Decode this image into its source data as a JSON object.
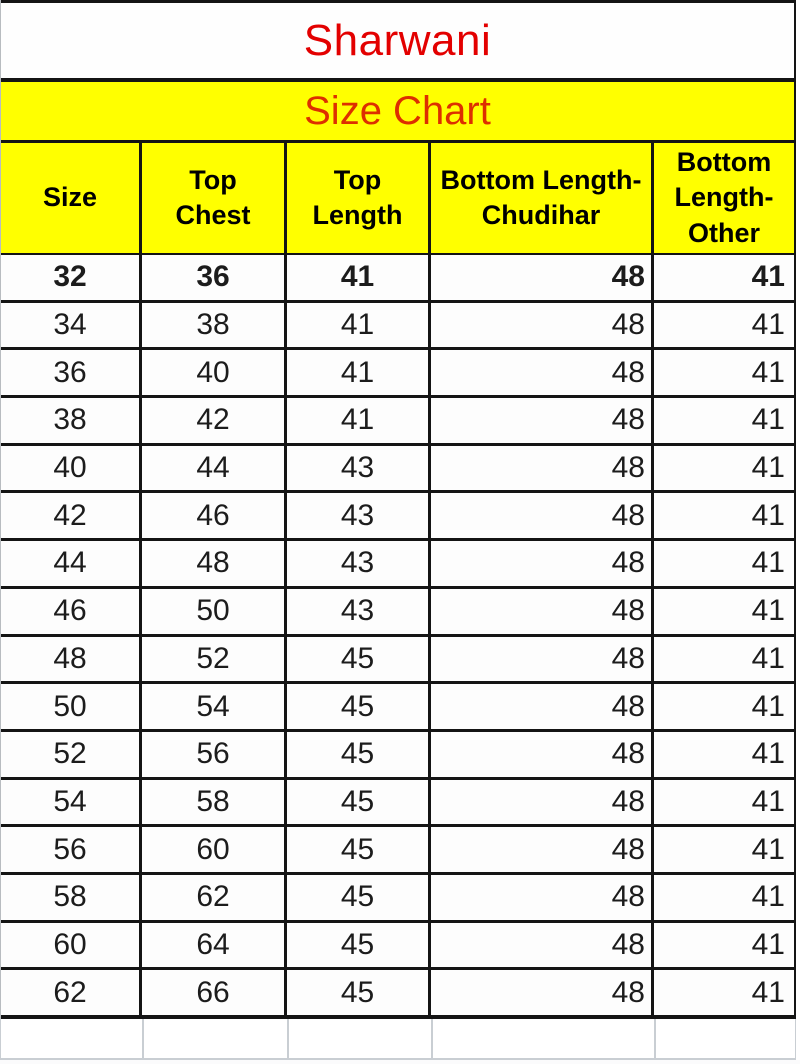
{
  "page": {
    "title": "Sharwani",
    "subtitle": "Size Chart"
  },
  "colors": {
    "title_red": "#e30000",
    "subtitle_red": "#dd2f00",
    "band_yellow": "#ffff00",
    "line_black": "#141414",
    "text_black": "#1c1c1c",
    "ghost_line": "#c9ced3"
  },
  "chart_data": {
    "type": "table",
    "title": "Sharwani",
    "subtitle": "Size Chart",
    "columns": [
      "Size",
      "Top Chest",
      "Top Length",
      "Bottom Length-Chudihar",
      "Bottom Length-Other"
    ],
    "columns_display": [
      "Size",
      "Top\nChest",
      "Top\nLength",
      "Bottom Length-\nChudihar",
      "Bottom\nLength-\nOther"
    ],
    "rows": [
      [
        "32",
        "36",
        "41",
        "48",
        "41"
      ],
      [
        "34",
        "38",
        "41",
        "48",
        "41"
      ],
      [
        "36",
        "40",
        "41",
        "48",
        "41"
      ],
      [
        "38",
        "42",
        "41",
        "48",
        "41"
      ],
      [
        "40",
        "44",
        "43",
        "48",
        "41"
      ],
      [
        "42",
        "46",
        "43",
        "48",
        "41"
      ],
      [
        "44",
        "48",
        "43",
        "48",
        "41"
      ],
      [
        "46",
        "50",
        "43",
        "48",
        "41"
      ],
      [
        "48",
        "52",
        "45",
        "48",
        "41"
      ],
      [
        "50",
        "54",
        "45",
        "48",
        "41"
      ],
      [
        "52",
        "56",
        "45",
        "48",
        "41"
      ],
      [
        "54",
        "58",
        "45",
        "48",
        "41"
      ],
      [
        "56",
        "60",
        "45",
        "48",
        "41"
      ],
      [
        "58",
        "62",
        "45",
        "48",
        "41"
      ],
      [
        "60",
        "64",
        "45",
        "48",
        "41"
      ],
      [
        "62",
        "66",
        "45",
        "48",
        "41"
      ]
    ],
    "layout": {
      "first_row_bold": true,
      "center_aligned_columns": [
        "Size",
        "Top Chest",
        "Top Length"
      ],
      "right_aligned_columns": [
        "Bottom Length-Chudihar",
        "Bottom Length-Other"
      ],
      "header_background": "#ffff00",
      "grid_on": true
    }
  }
}
